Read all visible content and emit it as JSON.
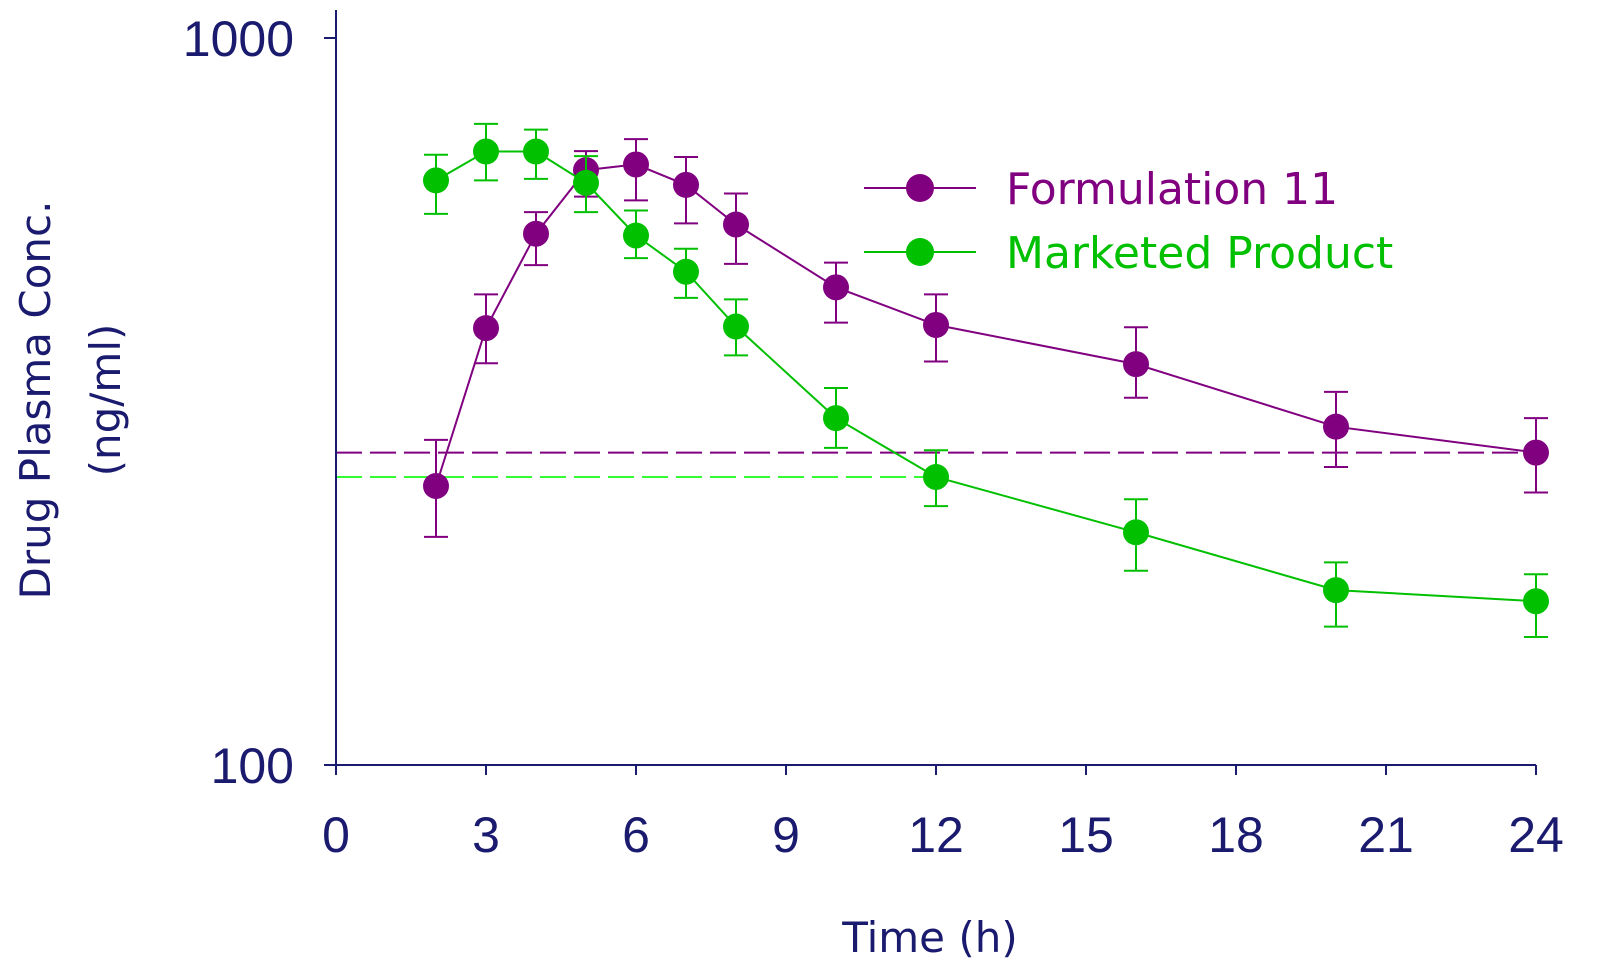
{
  "chart_data": {
    "type": "line",
    "xlabel": "Time (h)",
    "ylabel_line1": "Drug Plasma Conc.",
    "ylabel_line2": "(ng/ml)",
    "xlim": [
      0,
      24
    ],
    "ylim": [
      100,
      1000
    ],
    "yscale": "log",
    "x_ticks": [
      0,
      3,
      6,
      9,
      12,
      15,
      18,
      21,
      24
    ],
    "y_ticks": [
      100,
      1000
    ],
    "x_tick_labels": [
      "0",
      "3",
      "6",
      "9",
      "12",
      "15",
      "18",
      "21",
      "24"
    ],
    "y_tick_labels": [
      "100",
      "1000"
    ],
    "legend_position": "top-right",
    "grid": false,
    "series": [
      {
        "name": "Formulation 11",
        "color": "#800080",
        "x": [
          2,
          3,
          4,
          5,
          6,
          7,
          8,
          10,
          12,
          16,
          20,
          24
        ],
        "y": [
          242,
          399,
          538,
          658,
          670,
          628,
          554,
          454,
          403,
          356,
          292,
          269
        ],
        "err_low": [
          206,
          357,
          487,
          605,
          598,
          556,
          489,
          406,
          359,
          320,
          257,
          237
        ],
        "err_high": [
          280,
          444,
          576,
          699,
          726,
          686,
          611,
          491,
          444,
          400,
          326,
          300
        ]
      },
      {
        "name": "Marketed Product",
        "color": "#00c000",
        "x": [
          2,
          3,
          4,
          5,
          6,
          7,
          8,
          10,
          12,
          16,
          20,
          24
        ],
        "y": [
          637,
          698,
          698,
          632,
          535,
          477,
          401,
          300,
          249,
          209,
          174,
          168
        ],
        "err_low": [
          573,
          637,
          640,
          576,
          498,
          439,
          366,
          273,
          227,
          185,
          155,
          150
        ],
        "err_high": [
          691,
          762,
          748,
          688,
          579,
          513,
          437,
          330,
          271,
          232,
          190,
          183
        ]
      }
    ],
    "reference_lines": [
      {
        "series": "Formulation 11",
        "y": 269,
        "x_from": 2,
        "x_to": 24,
        "color": "#800080"
      },
      {
        "series": "Marketed Product",
        "y": 249,
        "x_from": 2,
        "x_to": 12,
        "color": "#33ff33"
      }
    ]
  }
}
